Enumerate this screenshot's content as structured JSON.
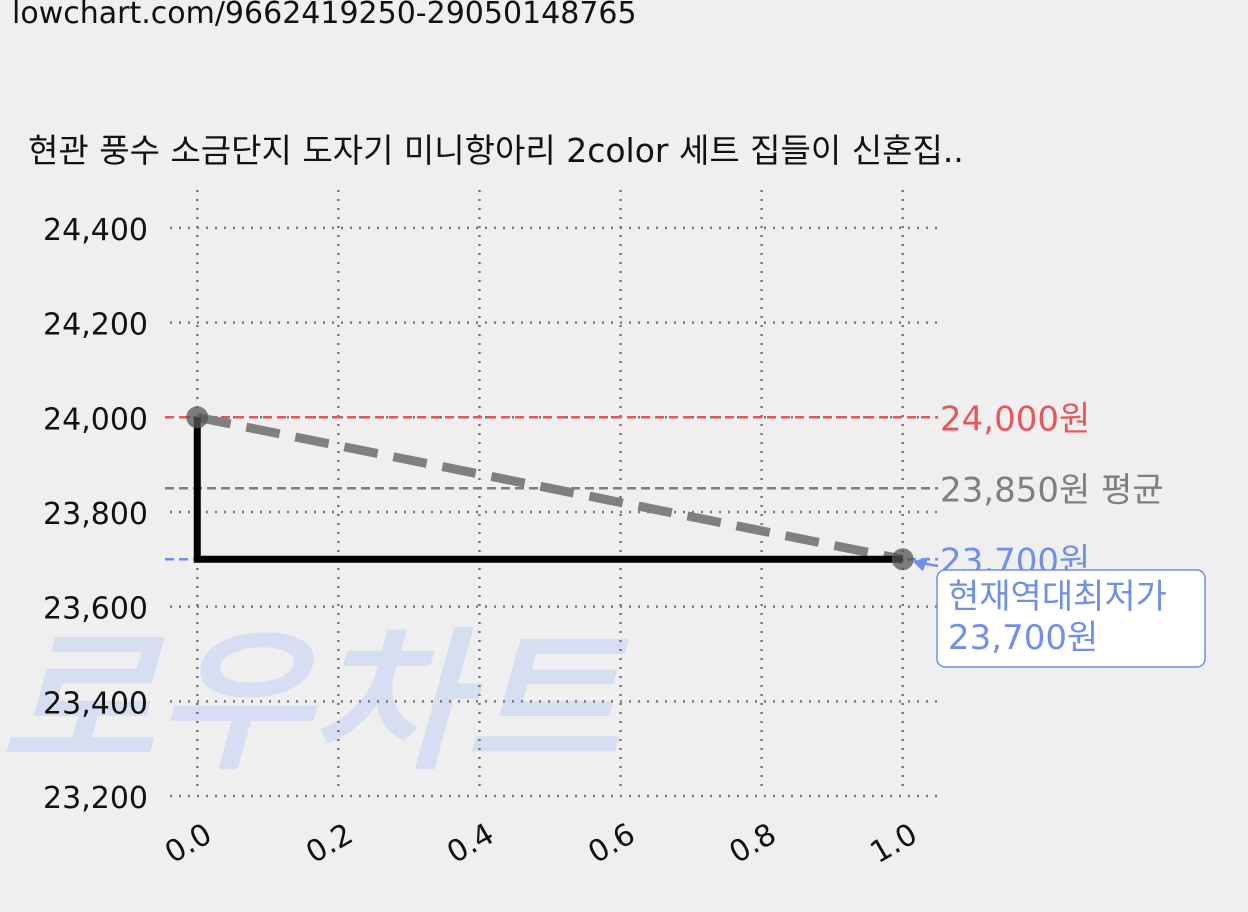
{
  "page": {
    "url": "lowchart.com/9662419250-29050148765"
  },
  "watermark": {
    "text": "로우차트",
    "color": "#d6dff2"
  },
  "colors": {
    "max": "#e8565a",
    "avg": "#7f7f7f",
    "min": "#6f8fe8",
    "price": "#000000",
    "trend": "#808080",
    "grid": "#777777"
  },
  "chart_data": {
    "type": "line",
    "title": "현관 풍수 소금단지 도자기 미니항아리 2color 세트 집들이 신혼집..",
    "x": [
      0.0,
      1.0
    ],
    "price_step": {
      "name": "",
      "points": [
        [
          0.0,
          24000
        ],
        [
          0.0,
          23700
        ],
        [
          1.0,
          23700
        ]
      ]
    },
    "trend_line": {
      "points": [
        [
          0.0,
          24000
        ],
        [
          1.0,
          23700
        ]
      ]
    },
    "xlim": [
      -0.05,
      1.05
    ],
    "ylim": [
      23200,
      24480
    ],
    "x_ticks": [
      "0.0",
      "0.2",
      "0.4",
      "0.6",
      "0.8",
      "1.0"
    ],
    "x_tick_values": [
      0.0,
      0.2,
      0.4,
      0.6,
      0.8,
      1.0
    ],
    "y_ticks": [
      "24,400",
      "24,200",
      "24,000",
      "23,800",
      "23,600",
      "23,400",
      "23,200"
    ],
    "y_tick_values": [
      24400,
      24200,
      24000,
      23800,
      23600,
      23400,
      23200
    ],
    "grid": true,
    "reference_lines": [
      {
        "kind": "max",
        "value": 24000,
        "label": "24,000원"
      },
      {
        "kind": "avg",
        "value": 23850,
        "label": "23,850원 평균"
      },
      {
        "kind": "min",
        "value": 23700,
        "label": "23,700원"
      }
    ],
    "annotation": {
      "line1": "현재역대최저가",
      "line2": "23,700원",
      "x": 1.0,
      "y": 23700
    }
  }
}
